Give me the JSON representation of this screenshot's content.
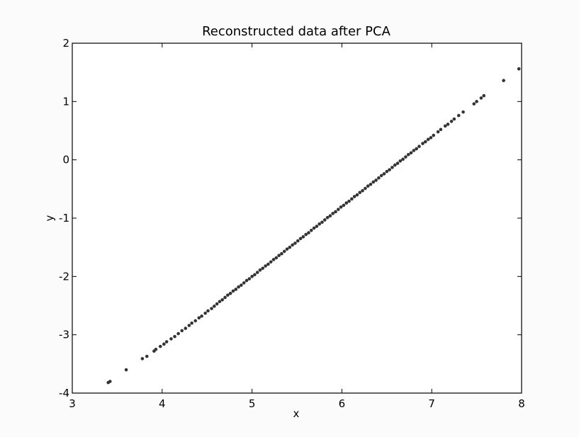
{
  "chart_data": {
    "type": "scatter",
    "title": "Reconstructed data after PCA",
    "xlabel": "x",
    "ylabel": "y",
    "xlim": [
      3,
      8
    ],
    "ylim": [
      -4,
      2
    ],
    "xticks": [
      3,
      4,
      5,
      6,
      7,
      8
    ],
    "yticks": [
      -4,
      -3,
      -2,
      -1,
      0,
      1,
      2
    ],
    "xtick_labels": [
      "3",
      "4",
      "5",
      "6",
      "7",
      "8"
    ],
    "ytick_labels": [
      "-4",
      "-3",
      "-2",
      "-1",
      "0",
      "1",
      "2"
    ],
    "grid": false,
    "marker_color": "#333333",
    "line": {
      "slope": 1.2,
      "intercept": -7.9
    },
    "x": [
      3.4,
      3.42,
      3.6,
      3.78,
      3.83,
      3.91,
      3.93,
      3.98,
      4.02,
      4.05,
      4.1,
      4.14,
      4.18,
      4.22,
      4.26,
      4.3,
      4.33,
      4.37,
      4.41,
      4.44,
      4.48,
      4.51,
      4.55,
      4.58,
      4.61,
      4.64,
      4.67,
      4.7,
      4.73,
      4.76,
      4.79,
      4.82,
      4.85,
      4.88,
      4.91,
      4.94,
      4.97,
      5.0,
      5.03,
      5.06,
      5.09,
      5.12,
      5.15,
      5.18,
      5.21,
      5.24,
      5.27,
      5.3,
      5.33,
      5.36,
      5.39,
      5.42,
      5.45,
      5.48,
      5.51,
      5.54,
      5.57,
      5.6,
      5.63,
      5.66,
      5.69,
      5.72,
      5.75,
      5.78,
      5.81,
      5.84,
      5.87,
      5.9,
      5.93,
      5.96,
      5.99,
      6.02,
      6.05,
      6.08,
      6.11,
      6.14,
      6.17,
      6.2,
      6.23,
      6.26,
      6.29,
      6.32,
      6.35,
      6.38,
      6.41,
      6.44,
      6.47,
      6.5,
      6.53,
      6.56,
      6.59,
      6.62,
      6.65,
      6.68,
      6.71,
      6.74,
      6.77,
      6.8,
      6.83,
      6.86,
      6.9,
      6.93,
      6.96,
      6.99,
      7.02,
      7.07,
      7.1,
      7.15,
      7.18,
      7.22,
      7.25,
      7.3,
      7.35,
      7.47,
      7.5,
      7.55,
      7.58,
      7.8,
      7.97
    ],
    "y": [
      -3.82,
      -3.8,
      -3.6,
      -3.41,
      -3.37,
      -3.28,
      -3.25,
      -3.2,
      -3.16,
      -3.12,
      -3.07,
      -3.03,
      -2.98,
      -2.93,
      -2.89,
      -2.84,
      -2.8,
      -2.76,
      -2.71,
      -2.68,
      -2.63,
      -2.59,
      -2.55,
      -2.51,
      -2.47,
      -2.43,
      -2.4,
      -2.36,
      -2.32,
      -2.29,
      -2.25,
      -2.22,
      -2.18,
      -2.15,
      -2.11,
      -2.07,
      -2.04,
      -2.0,
      -1.97,
      -1.93,
      -1.89,
      -1.86,
      -1.82,
      -1.79,
      -1.75,
      -1.71,
      -1.68,
      -1.64,
      -1.61,
      -1.57,
      -1.53,
      -1.5,
      -1.46,
      -1.43,
      -1.39,
      -1.35,
      -1.32,
      -1.28,
      -1.25,
      -1.21,
      -1.17,
      -1.14,
      -1.1,
      -1.07,
      -1.03,
      -0.99,
      -0.96,
      -0.92,
      -0.89,
      -0.85,
      -0.81,
      -0.78,
      -0.74,
      -0.71,
      -0.67,
      -0.63,
      -0.6,
      -0.56,
      -0.53,
      -0.49,
      -0.45,
      -0.42,
      -0.38,
      -0.35,
      -0.31,
      -0.27,
      -0.24,
      -0.2,
      -0.17,
      -0.13,
      -0.09,
      -0.06,
      -0.02,
      0.01,
      0.05,
      0.09,
      0.12,
      0.16,
      0.19,
      0.23,
      0.28,
      0.31,
      0.35,
      0.38,
      0.42,
      0.48,
      0.52,
      0.58,
      0.61,
      0.66,
      0.7,
      0.76,
      0.82,
      0.96,
      1.0,
      1.06,
      1.1,
      1.36,
      1.56
    ]
  }
}
